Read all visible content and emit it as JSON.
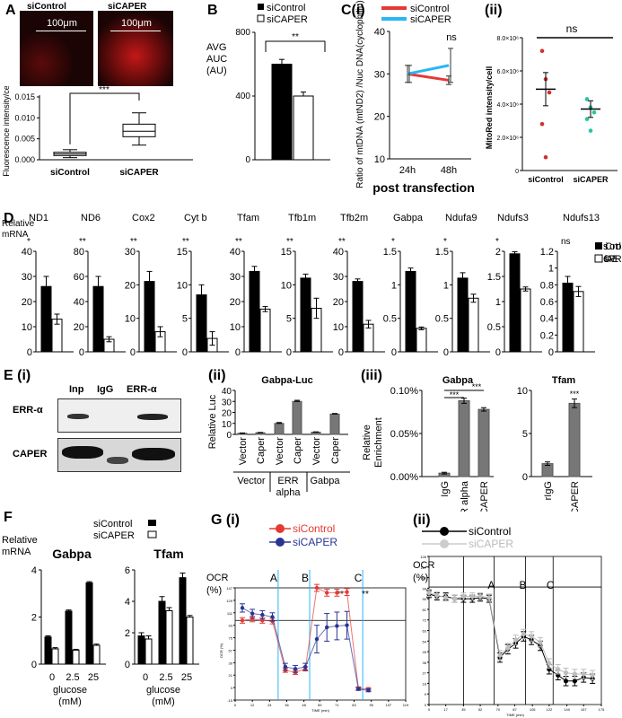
{
  "panels": {
    "A": "A",
    "B": "B",
    "Ci": "C(i)",
    "Cii": "(ii)",
    "D": "D",
    "Ei": "E (i)",
    "Eii": "(ii)",
    "Eiii": "(iii)",
    "F": "F",
    "Gi": "G (i)",
    "Gii": "(ii)"
  },
  "A": {
    "images": [
      {
        "label": "siControl",
        "scale": "100μm"
      },
      {
        "label": "siCAPER",
        "scale": "100μm"
      }
    ],
    "ylabel": "Fluorescence intensity/cell",
    "ticks": [
      "0.000",
      "0.005",
      "0.010",
      "0.015"
    ],
    "sig": "***",
    "groups": [
      "siControl",
      "siCAPER"
    ]
  },
  "B": {
    "ylabel_lines": [
      "AVG",
      "AUC",
      "(AU)"
    ],
    "legend": [
      "siControl",
      "siCAPER"
    ],
    "ticks": [
      "0",
      "400",
      "800"
    ],
    "sig": "**"
  },
  "Ci": {
    "legend": [
      "siControl",
      "siCAPER"
    ],
    "ylabel": "Ratio of mtDNA (mtND2) /Nuc DNA(cyclophilin)",
    "ticks": [
      "10",
      "20",
      "30",
      "40"
    ],
    "xticks": [
      "24h",
      "48h"
    ],
    "xlabel": "post transfection",
    "sig": "ns"
  },
  "Cii": {
    "ylabel": "MitoRed intensity/cell",
    "ticks": [
      "0",
      "2.0×10⁶",
      "4.0×10⁶",
      "6.0×10⁶",
      "8.0×10⁶"
    ],
    "groups": [
      "siControl",
      "siCAPER"
    ],
    "sig": "ns"
  },
  "D": {
    "ylabel_lines": [
      "Relative",
      "mRNA"
    ],
    "genes": [
      "ND1",
      "ND6",
      "Cox2",
      "Cyt b",
      "Tfam",
      "Tfb1m",
      "Tfb2m",
      "Gabpa",
      "Ndufa9",
      "Ndufs3",
      "Ndufs13"
    ],
    "sigs": [
      "*",
      "**",
      "**",
      "**",
      "**",
      "**",
      "**",
      "*",
      "*",
      "*",
      "ns"
    ],
    "legend": [
      "siControl",
      "siCAPER"
    ]
  },
  "Ei": {
    "lanes": [
      "Inp",
      "IgG",
      "ERR-α"
    ],
    "rows": [
      "ERR-α",
      "CAPER"
    ]
  },
  "Eii": {
    "title": "Gabpa-Luc",
    "ylabel": "Relative Luc",
    "ticks": [
      "0",
      "10",
      "20",
      "30",
      "40"
    ],
    "bar_labels": [
      "Vector",
      "Caper",
      "Vector",
      "Caper",
      "Vector",
      "Caper"
    ],
    "groups": [
      "Vector",
      "ERR alpha",
      "Gabpa"
    ]
  },
  "Eiii": {
    "title1": "Gabpa",
    "title2": "Tfam",
    "ylabel": "Relative Enrichment",
    "ticks1": [
      "0.00%",
      "0.05%",
      "0.10%"
    ],
    "ticks2": [
      "0",
      "5",
      "10"
    ],
    "cats1": [
      "IgG",
      "ERR alpha",
      "CAPER"
    ],
    "cats2": [
      "rIgG",
      "rCAPER"
    ],
    "sig": "***"
  },
  "F": {
    "ylabel_lines": [
      "Relative",
      "mRNA"
    ],
    "legend": [
      "siControl",
      "siCAPER"
    ],
    "titles": [
      "Gabpa",
      "Tfam"
    ],
    "ticks1": [
      "0",
      "2",
      "4"
    ],
    "ticks2": [
      "0",
      "2",
      "4",
      "6"
    ],
    "xticks1": [
      "0",
      "2.5",
      "25"
    ],
    "xticks2": [
      "0",
      "2.5",
      "25"
    ],
    "xlabel_lines": [
      "glucose",
      "(mM)"
    ]
  },
  "Gi": {
    "legend": [
      "siControl",
      "siCAPER"
    ],
    "ylabel_lines": [
      "OCR",
      "(%)"
    ],
    "markers": [
      "A",
      "B",
      "C"
    ],
    "sig": [
      "**",
      "**"
    ],
    "inner_ylabel": "OCR (%)",
    "inner_xlabel": "TIME (min)",
    "yticks": [
      "-15",
      "3",
      "21",
      "39",
      "57",
      "75",
      "93",
      "111",
      "129",
      "147"
    ],
    "xticks": [
      "0",
      "12",
      "24",
      "36",
      "48",
      "59",
      "71",
      "83",
      "95",
      "107",
      "119"
    ]
  },
  "Gii": {
    "legend": [
      "siControl",
      "siCAPER"
    ],
    "ylabel_lines": [
      "OCR",
      "(%)"
    ],
    "markers": [
      "A",
      "B",
      "C"
    ],
    "inner_xlabel": "TIME (min)",
    "yticks": [
      "0",
      "9",
      "18",
      "27",
      "36",
      "45",
      "54",
      "63",
      "72",
      "81",
      "90",
      "99",
      "108",
      "117",
      "126"
    ],
    "xticks": [
      "0",
      "17",
      "35",
      "52",
      "70",
      "87",
      "105",
      "122",
      "140",
      "157",
      "175"
    ]
  },
  "colors": {
    "control": "#000000",
    "caper": "#ffffff",
    "red": "#e53935",
    "blue": "#29b6f6",
    "navy": "#283593",
    "gray": "#777777",
    "dotred": "#d32f2f",
    "dotgreen": "#26c6a0"
  },
  "chart_data": [
    {
      "type": "box",
      "panel": "A",
      "categories": [
        "siControl",
        "siCAPER"
      ],
      "box": [
        {
          "min": 0.0005,
          "q1": 0.001,
          "median": 0.0014,
          "q3": 0.0018,
          "max": 0.0024
        },
        {
          "min": 0.0035,
          "q1": 0.0055,
          "median": 0.0068,
          "q3": 0.0085,
          "max": 0.0112
        }
      ],
      "ylim": [
        0,
        0.015
      ]
    },
    {
      "type": "bar",
      "panel": "B",
      "series": [
        {
          "name": "siControl",
          "values": [
            600
          ],
          "err": [
            30
          ]
        },
        {
          "name": "siCAPER",
          "values": [
            400
          ],
          "err": [
            25
          ]
        }
      ],
      "ylim": [
        0,
        800
      ]
    },
    {
      "type": "line",
      "panel": "C(i)",
      "x": [
        "24h",
        "48h"
      ],
      "series": [
        {
          "name": "siControl",
          "values": [
            30,
            28.5
          ],
          "err": [
            2,
            1
          ]
        },
        {
          "name": "siCAPER",
          "values": [
            30,
            32
          ],
          "err": [
            2,
            4
          ]
        }
      ],
      "ylim": [
        10,
        40
      ]
    },
    {
      "type": "scatter",
      "panel": "C(ii)",
      "categories": [
        "siControl",
        "siCAPER"
      ],
      "points": [
        [
          7200000,
          5500000,
          4700000,
          2800000,
          800000
        ],
        [
          4300000,
          3800000,
          3500000,
          3100000,
          2400000
        ]
      ],
      "means": [
        4900000,
        3700000
      ],
      "ylim": [
        0,
        8000000
      ]
    },
    {
      "type": "bar",
      "panel": "D",
      "categories": [
        "ND1",
        "ND6",
        "Cox2",
        "Cyt b",
        "Tfam",
        "Tfb1m",
        "Tfb2m",
        "Gabpa",
        "Ndufa9",
        "Ndufs3",
        "Ndufs13"
      ],
      "ymax": [
        40,
        80,
        30,
        15,
        40,
        15,
        40,
        1.5,
        1.5,
        2.0,
        1.2
      ],
      "yticks": [
        [
          0,
          10,
          20,
          30,
          40
        ],
        [
          0,
          20,
          40,
          60,
          80
        ],
        [
          0,
          10,
          20,
          30
        ],
        [
          0,
          5,
          10,
          15
        ],
        [
          0,
          10,
          20,
          30,
          40
        ],
        [
          0,
          5,
          10,
          15
        ],
        [
          0,
          10,
          20,
          30,
          40
        ],
        [
          0,
          0.5,
          1,
          1.5
        ],
        [
          0,
          0.5,
          1,
          1.5
        ],
        [
          0,
          0.5,
          1,
          1.5,
          2
        ],
        [
          0,
          0.2,
          0.4,
          0.6,
          0.8,
          1,
          1.2
        ]
      ],
      "series": [
        {
          "name": "siControl",
          "values": [
            26,
            52,
            21,
            8.5,
            32,
            11,
            28,
            1.2,
            1.1,
            1.95,
            0.82
          ],
          "err": [
            4,
            8,
            3,
            1.5,
            2,
            0.6,
            1,
            0.05,
            0.08,
            0.04,
            0.08
          ]
        },
        {
          "name": "siCAPER",
          "values": [
            13,
            10,
            6,
            2,
            17,
            6.5,
            11,
            0.35,
            0.8,
            1.25,
            0.72
          ],
          "err": [
            2,
            2,
            1.5,
            1,
            1,
            1.5,
            1.5,
            0.02,
            0.06,
            0.04,
            0.06
          ]
        }
      ]
    },
    {
      "type": "bar",
      "panel": "E(ii)",
      "categories": [
        "Vector",
        "Caper",
        "Vector",
        "Caper",
        "Vector",
        "Caper"
      ],
      "values": [
        1,
        1.5,
        10,
        30,
        2,
        18.5
      ],
      "err": [
        0.3,
        0.3,
        0.8,
        1,
        0.3,
        0.5
      ],
      "ylim": [
        0,
        40
      ]
    },
    {
      "type": "bar",
      "panel": "E(iii) Gabpa",
      "categories": [
        "IgG",
        "ERR alpha",
        "CAPER"
      ],
      "values": [
        0.004,
        0.088,
        0.078
      ],
      "err": [
        0.001,
        0.003,
        0.002
      ],
      "ylim": [
        0,
        0.1
      ]
    },
    {
      "type": "bar",
      "panel": "E(iii) Tfam",
      "categories": [
        "rIgG",
        "rCAPER"
      ],
      "values": [
        1.5,
        8.5
      ],
      "err": [
        0.2,
        0.5
      ],
      "ylim": [
        0,
        10
      ]
    },
    {
      "type": "bar",
      "panel": "F Gabpa",
      "categories": [
        "0",
        "2.5",
        "25"
      ],
      "series": [
        {
          "name": "siControl",
          "values": [
            1.15,
            2.25,
            3.45
          ],
          "err": [
            0.05,
            0.05,
            0.05
          ]
        },
        {
          "name": "siCAPER",
          "values": [
            0.65,
            0.6,
            0.8
          ],
          "err": [
            0.05,
            0.03,
            0.05
          ]
        }
      ],
      "ylim": [
        0,
        4
      ]
    },
    {
      "type": "bar",
      "panel": "F Tfam",
      "categories": [
        "0",
        "2.5",
        "25"
      ],
      "series": [
        {
          "name": "siControl",
          "values": [
            1.8,
            4.0,
            5.5
          ],
          "err": [
            0.2,
            0.3,
            0.3
          ]
        },
        {
          "name": "siCAPER",
          "values": [
            1.6,
            3.4,
            3.0
          ],
          "err": [
            0.2,
            0.2,
            0.1
          ]
        }
      ],
      "ylim": [
        0,
        6
      ]
    },
    {
      "type": "line",
      "panel": "G(i)",
      "x": [
        5,
        12,
        19,
        26,
        35,
        42,
        49,
        57,
        64,
        71,
        78,
        86,
        93
      ],
      "series": [
        {
          "name": "siControl",
          "values": [
            100,
            102,
            100,
            99,
            28,
            25,
            30,
            147,
            140,
            140,
            141,
            2,
            1
          ],
          "err": [
            4,
            4,
            4,
            4,
            3,
            3,
            3,
            5,
            5,
            5,
            5,
            2,
            2
          ]
        },
        {
          "name": "siCAPER",
          "values": [
            118,
            110,
            108,
            105,
            33,
            30,
            33,
            73,
            90,
            92,
            93,
            1,
            -1
          ],
          "err": [
            6,
            6,
            6,
            6,
            5,
            5,
            5,
            20,
            20,
            20,
            20,
            2,
            2
          ]
        }
      ],
      "ylim": [
        -15,
        147
      ],
      "xlim": [
        0,
        119
      ]
    },
    {
      "type": "line",
      "panel": "G(ii)",
      "x": [
        0,
        8,
        17,
        26,
        35,
        44,
        52,
        61,
        72,
        80,
        88,
        96,
        104,
        113,
        122,
        131,
        139,
        148,
        157,
        166
      ],
      "series": [
        {
          "name": "siControl",
          "values": [
            94,
            92,
            92,
            90,
            90,
            90,
            91,
            90,
            40,
            47,
            52,
            58,
            55,
            50,
            30,
            25,
            20,
            20,
            23,
            22
          ],
          "err": [
            3,
            3,
            3,
            3,
            3,
            3,
            3,
            3,
            4,
            4,
            4,
            4,
            4,
            4,
            4,
            4,
            4,
            4,
            4,
            4
          ]
        },
        {
          "name": "siCAPER",
          "values": [
            95,
            93,
            91,
            90,
            92,
            92,
            92,
            91,
            42,
            48,
            55,
            60,
            58,
            53,
            35,
            30,
            27,
            26,
            26,
            25
          ],
          "err": [
            3,
            3,
            3,
            3,
            3,
            3,
            3,
            3,
            4,
            4,
            4,
            4,
            4,
            4,
            4,
            4,
            4,
            4,
            4,
            4
          ]
        }
      ],
      "ylim": [
        0,
        126
      ],
      "xlim": [
        0,
        175
      ]
    }
  ]
}
